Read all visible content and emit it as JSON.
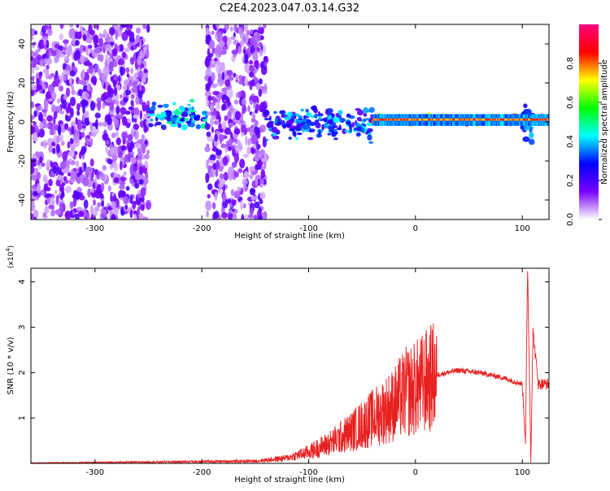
{
  "title": "C2E4.2023.047.03.14.G32",
  "chart_data": [
    {
      "type": "heatmap",
      "xlabel": "Height of straight line (km)",
      "ylabel": "Frequency (Hz)",
      "xlim": [
        -360,
        125
      ],
      "ylim": [
        -50,
        50
      ],
      "x_ticks": [
        -300,
        -200,
        -100,
        0,
        100
      ],
      "y_ticks": [
        -40,
        -20,
        0,
        20,
        40
      ],
      "grid": false,
      "colorbar": {
        "label": "Normalized spectral amplitude",
        "range": [
          0.0,
          1.0
        ],
        "ticks": [
          0.0,
          0.2,
          0.4,
          0.6,
          0.8
        ],
        "colors": [
          "#ffffff",
          "#7a00ff",
          "#0000ff",
          "#00ffff",
          "#00ff00",
          "#ffff00",
          "#ff0000",
          "#ff0080"
        ]
      },
      "regions": [
        {
          "x": [
            -360,
            -250
          ],
          "freq": [
            -50,
            50
          ],
          "amplitude": 0.12
        },
        {
          "x": [
            -250,
            -195
          ],
          "freq": [
            -8,
            12
          ],
          "amplitude": 0.35
        },
        {
          "x": [
            -195,
            -140
          ],
          "freq": [
            -50,
            50
          ],
          "amplitude": 0.1
        },
        {
          "x": [
            -140,
            -40
          ],
          "freq": [
            -12,
            10
          ],
          "amplitude": 0.3
        },
        {
          "x": [
            -40,
            125
          ],
          "freq": [
            -2,
            4
          ],
          "amplitude": 0.85
        },
        {
          "x": [
            100,
            110
          ],
          "freq": [
            -15,
            13
          ],
          "amplitude": 0.3
        }
      ]
    },
    {
      "type": "line",
      "xlabel": "Height of straight line (km)",
      "ylabel": "SNR (10 * v/v)",
      "y_multiplier": "(x10",
      "y_multiplier_exp": "4",
      "y_multiplier_close": ")",
      "xlim": [
        -360,
        125
      ],
      "ylim": [
        0,
        4.3
      ],
      "x_ticks": [
        -300,
        -200,
        -100,
        0,
        100
      ],
      "y_ticks": [
        1,
        2,
        3,
        4
      ],
      "grid": false,
      "series": [
        {
          "color": "#e82020",
          "x": [
            -360,
            -300,
            -250,
            -200,
            -150,
            -120,
            -100,
            -80,
            -60,
            -40,
            -20,
            -10,
            0,
            10,
            20,
            40,
            60,
            80,
            100,
            103,
            105,
            108,
            110,
            115,
            125
          ],
          "y": [
            0.01,
            0.02,
            0.03,
            0.04,
            0.05,
            0.12,
            0.25,
            0.45,
            0.7,
            1.0,
            1.3,
            1.55,
            1.65,
            1.8,
            1.95,
            2.05,
            2.0,
            1.9,
            1.75,
            0.5,
            4.3,
            0.1,
            2.9,
            1.75,
            1.75
          ]
        }
      ]
    }
  ]
}
